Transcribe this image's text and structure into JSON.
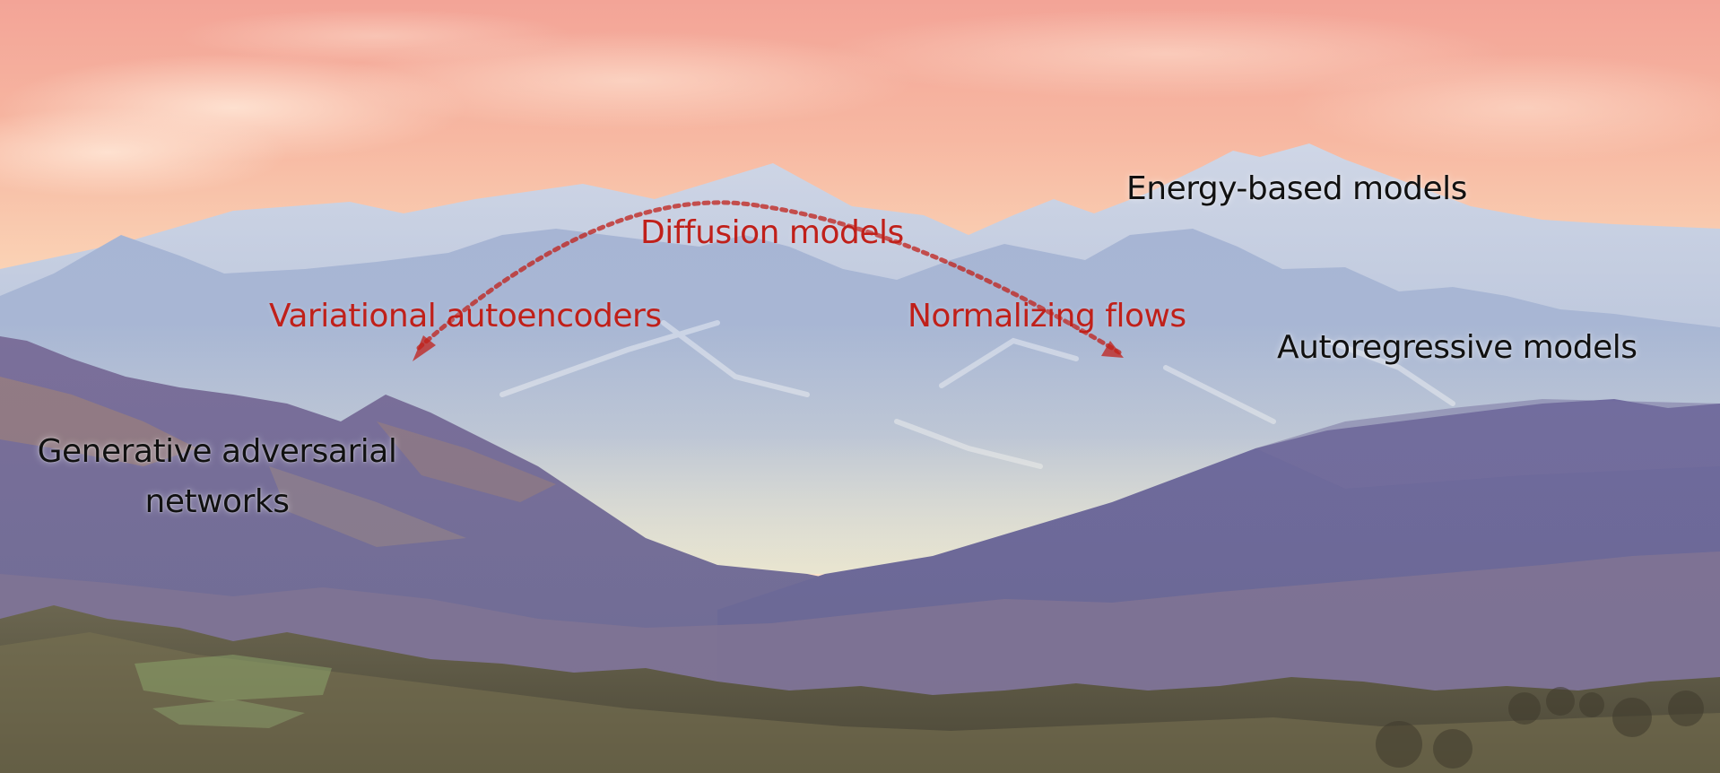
{
  "colors": {
    "highlight": "#c0201a",
    "text_dark": "#111111",
    "sky_top": "#f4a59a",
    "sky_mid": "#f9c9a8",
    "mountain_far": "#b8c6dc",
    "mountain_mid": "#9aa9cc",
    "hills_purple": "#6f6f9a",
    "forest": "#5d5a48"
  },
  "labels": {
    "diffusion": "Diffusion models",
    "vae": "Variational autoencoders",
    "flows": "Normalizing flows",
    "energy": "Energy-based models",
    "autoregressive": "Autoregressive models",
    "gan_line1": "Generative adversarial",
    "gan_line2": "networks"
  }
}
